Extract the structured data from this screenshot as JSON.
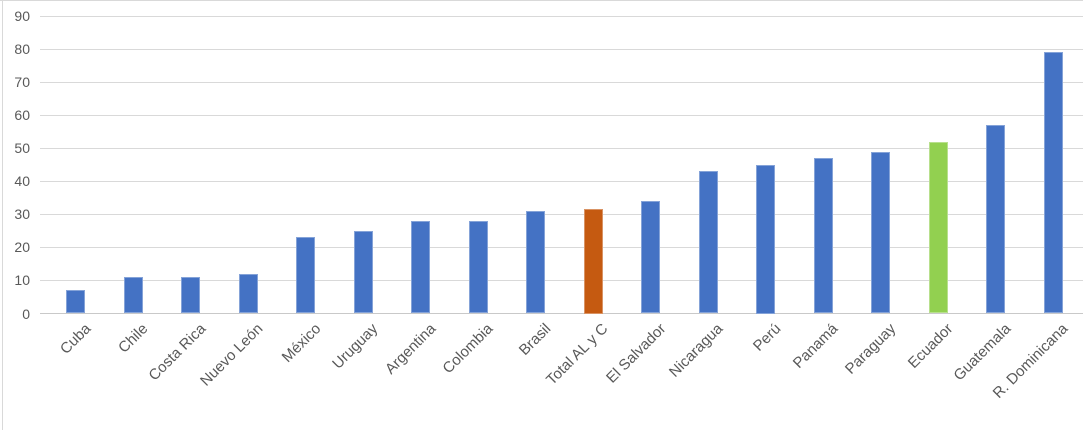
{
  "chart_data": {
    "type": "bar",
    "title": "",
    "xlabel": "",
    "ylabel": "",
    "categories": [
      "Cuba",
      "Chile",
      "Costa Rica",
      "Nuevo León",
      "México",
      "Uruguay",
      "Argentina",
      "Colombia",
      "Brasil",
      "Total AL y C",
      "El Salvador",
      "Nicaragua",
      "Perú",
      "Panamá",
      "Paraguay",
      "Ecuador",
      "Guatemala",
      "R. Dominicana"
    ],
    "values": [
      7,
      11,
      11,
      12,
      23,
      25,
      28,
      28,
      31,
      31.5,
      34,
      43,
      45,
      47,
      49,
      52,
      57,
      79
    ],
    "ylim": [
      0,
      90
    ],
    "yticks": [
      0,
      10,
      20,
      30,
      40,
      50,
      60,
      70,
      80,
      90
    ],
    "grid": "horizontal",
    "legend": "none",
    "colors": {
      "default_bar": "#4472c4",
      "highlight_orange": "#c55a11",
      "highlight_green": "#92d050",
      "gridline": "#d9d9d9",
      "axis_line": "#c9c9c9",
      "tick_text": "#595959"
    },
    "highlighted_bars": {
      "Total AL y C": "highlight_orange",
      "Ecuador": "highlight_green"
    }
  }
}
